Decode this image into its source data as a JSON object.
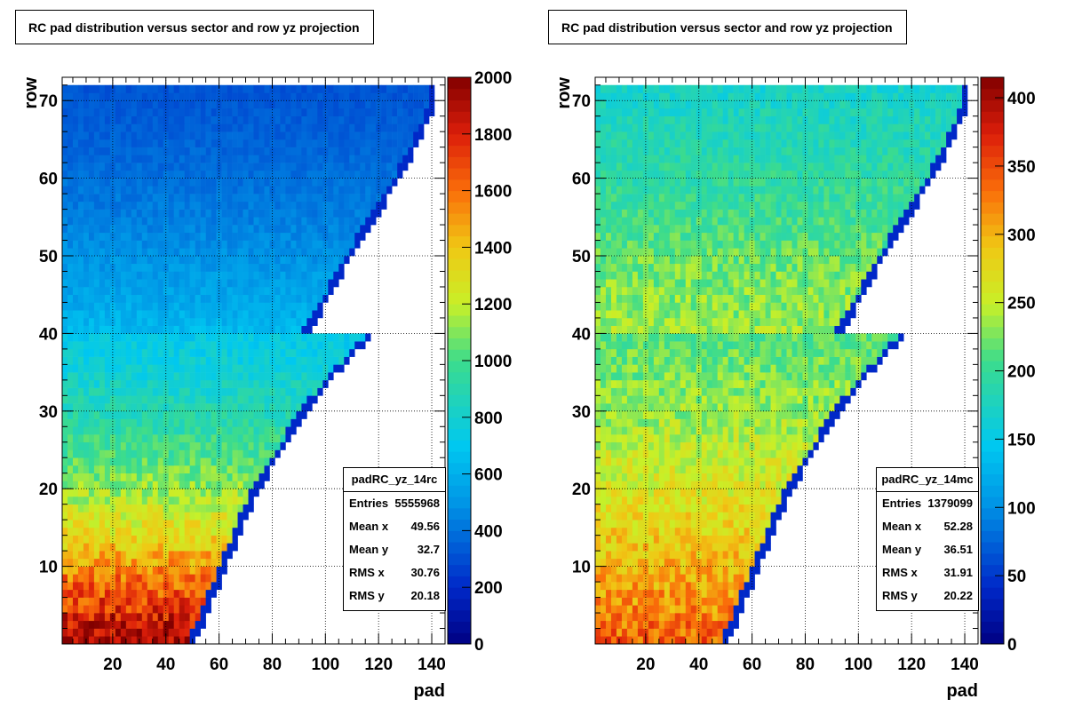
{
  "chart_data": [
    {
      "type": "heatmap",
      "title": "RC pad distribution versus sector and row yz projection",
      "xlabel": "pad",
      "ylabel": "row",
      "xlim": [
        1,
        145
      ],
      "ylim": [
        0,
        73
      ],
      "x_ticks": [
        20,
        40,
        60,
        80,
        100,
        120,
        140
      ],
      "y_ticks": [
        10,
        20,
        30,
        40,
        50,
        60,
        70
      ],
      "zlim": [
        0,
        2000
      ],
      "z_ticks": [
        0,
        200,
        400,
        600,
        800,
        1000,
        1200,
        1400,
        1600,
        1800,
        2000
      ],
      "grid": true,
      "colormap": "rainbow",
      "profile": {
        "rows": [
          1,
          5,
          10,
          15,
          20,
          25,
          30,
          35,
          40,
          41,
          45,
          50,
          55,
          60,
          65,
          70,
          72
        ],
        "mean_z": [
          1950,
          1750,
          1550,
          1300,
          1150,
          1000,
          900,
          800,
          720,
          640,
          560,
          500,
          440,
          400,
          360,
          330,
          320
        ],
        "max_pad": [
          51,
          56,
          62,
          68,
          74,
          83,
          92,
          103,
          117,
          94,
          101,
          109,
          118,
          127,
          135,
          141,
          141
        ]
      },
      "stats": {
        "name": "padRC_yz_14rc",
        "entries_label": "Entries",
        "entries": "5555968",
        "mean_x_label": "Mean x",
        "mean_x": "49.56",
        "mean_y_label": "Mean y",
        "mean_y": "32.7",
        "rms_x_label": "RMS x",
        "rms_x": "30.76",
        "rms_y_label": "RMS y",
        "rms_y": "20.18"
      }
    },
    {
      "type": "heatmap",
      "title": "RC pad distribution versus sector and row yz projection",
      "xlabel": "pad",
      "ylabel": "row",
      "xlim": [
        1,
        145
      ],
      "ylim": [
        0,
        73
      ],
      "x_ticks": [
        20,
        40,
        60,
        80,
        100,
        120,
        140
      ],
      "y_ticks": [
        10,
        20,
        30,
        40,
        50,
        60,
        70
      ],
      "zlim": [
        0,
        415
      ],
      "z_ticks": [
        0,
        50,
        100,
        150,
        200,
        250,
        300,
        350,
        400
      ],
      "grid": true,
      "colormap": "rainbow",
      "profile": {
        "rows": [
          1,
          5,
          10,
          15,
          20,
          25,
          30,
          35,
          40,
          41,
          45,
          50,
          55,
          60,
          65,
          70,
          72
        ],
        "mean_z": [
          340,
          320,
          300,
          280,
          265,
          250,
          235,
          225,
          215,
          235,
          230,
          220,
          205,
          195,
          185,
          175,
          170
        ],
        "max_pad": [
          51,
          56,
          62,
          68,
          74,
          83,
          92,
          103,
          117,
          94,
          101,
          109,
          118,
          127,
          135,
          141,
          141
        ]
      },
      "stats": {
        "name": "padRC_yz_14mc",
        "entries_label": "Entries",
        "entries": "1379099",
        "mean_x_label": "Mean x",
        "mean_x": "52.28",
        "mean_y_label": "Mean y",
        "mean_y": "36.51",
        "rms_x_label": "RMS x",
        "rms_x": "31.91",
        "rms_y_label": "RMS y",
        "rms_y": "20.22"
      }
    }
  ]
}
